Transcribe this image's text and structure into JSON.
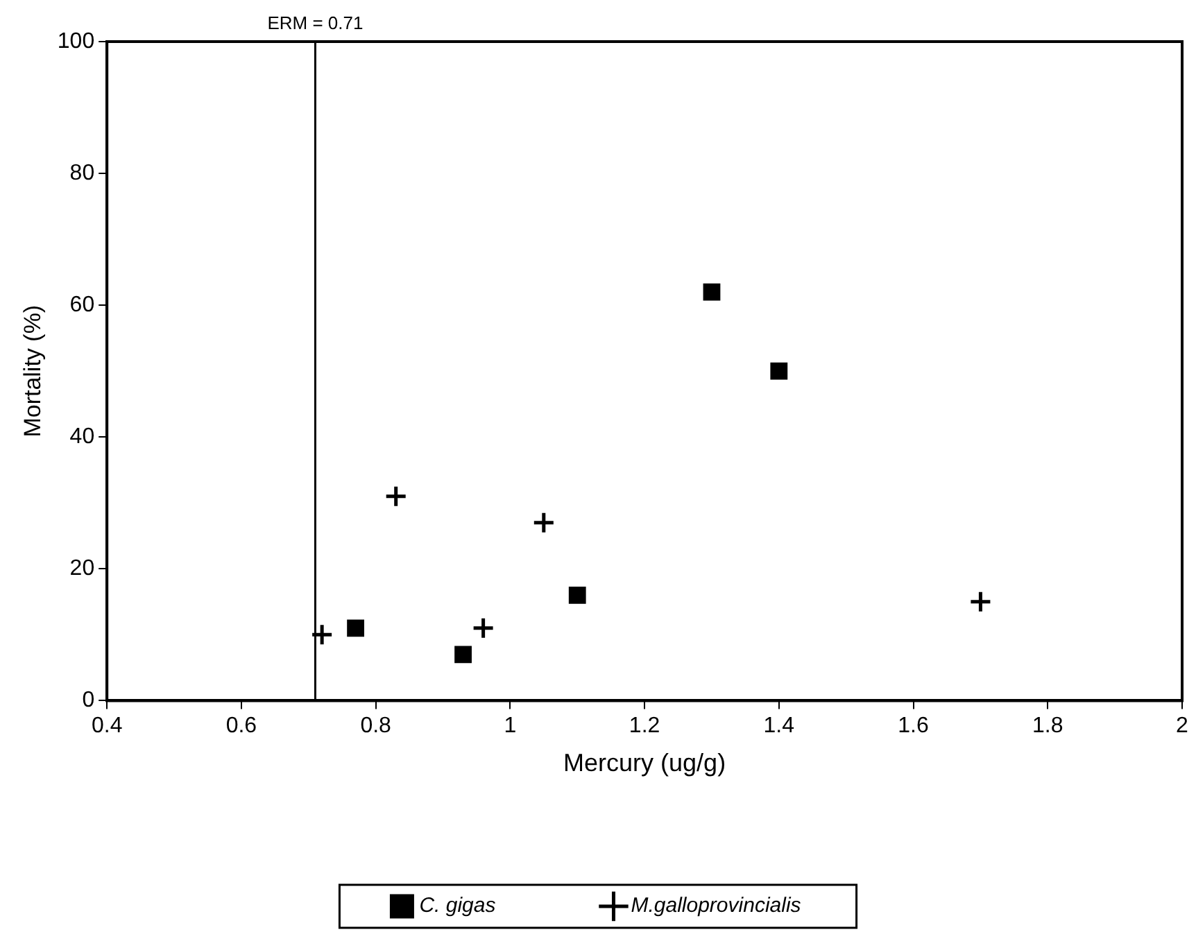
{
  "chart_data": {
    "type": "scatter",
    "xlabel": "Mercury (ug/g)",
    "ylabel": "Mortality (%)",
    "xlim": [
      0.4,
      2
    ],
    "xticks": [
      0.4,
      0.6,
      0.8,
      1,
      1.2,
      1.4,
      1.6,
      1.8,
      2
    ],
    "ylim": [
      0,
      100
    ],
    "yticks": [
      0,
      20,
      40,
      60,
      80,
      100
    ],
    "grid": false,
    "legend": "bottom",
    "ref_lines": [
      {
        "axis": "x",
        "value": 0.71,
        "label": "ERM = 0.71",
        "color": "#000000"
      }
    ],
    "series": [
      {
        "name": "C. gigas",
        "color": "#000000",
        "marker": "square",
        "x": [
          0.77,
          0.93,
          1.1,
          1.3,
          1.4
        ],
        "values": [
          11,
          7,
          16,
          62,
          50
        ]
      },
      {
        "name": "M.galloprovincialis",
        "color": "#000000",
        "marker": "cross",
        "x": [
          0.72,
          0.83,
          0.96,
          1.05,
          1.7
        ],
        "values": [
          10,
          31,
          11,
          27,
          15
        ]
      }
    ]
  }
}
